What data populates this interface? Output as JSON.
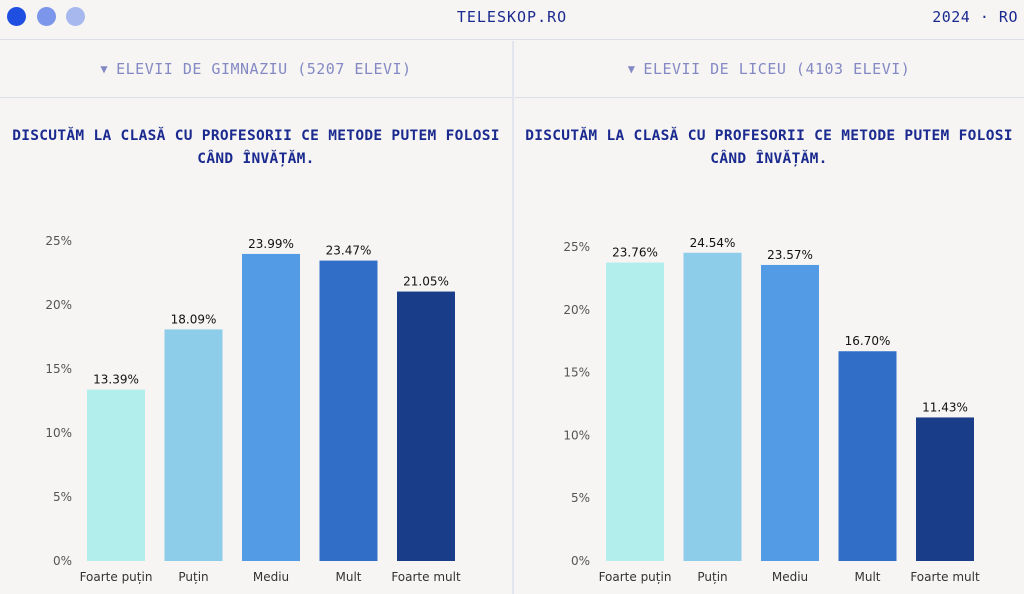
{
  "header": {
    "brand": "TELESKOP.RO",
    "meta": "2024 · RO",
    "window_dots": [
      "#1f4fe0",
      "#7b96ea",
      "#a7b8ef"
    ]
  },
  "panels": [
    {
      "dropdown_label": "ELEVII DE GIMNAZIU (5207 ELEVI)",
      "question": "DISCUTĂM LA CLASĂ CU PROFESORII CE METODE PUTEM FOLOSI CÂND ÎNVĂȚĂM."
    },
    {
      "dropdown_label": "ELEVII DE LICEU (4103 ELEVI)",
      "question": "DISCUTĂM LA CLASĂ CU PROFESORII CE METODE PUTEM FOLOSI CÂND ÎNVĂȚĂM."
    }
  ],
  "chart_data": [
    {
      "type": "bar",
      "categories": [
        "Foarte puțin",
        "Puțin",
        "Mediu",
        "Mult",
        "Foarte mult"
      ],
      "values": [
        13.39,
        18.09,
        23.99,
        23.47,
        21.05
      ],
      "value_labels": [
        "13.39%",
        "18.09%",
        "23.99%",
        "23.47%",
        "21.05%"
      ],
      "yticks": [
        "0%",
        "5%",
        "10%",
        "15%",
        "20%",
        "25%"
      ],
      "ylim": [
        0,
        25
      ],
      "grid": false,
      "colors": [
        "#b2efec",
        "#8dcde9",
        "#539be4",
        "#316ec7",
        "#1a3d8a"
      ]
    },
    {
      "type": "bar",
      "categories": [
        "Foarte puțin",
        "Puțin",
        "Mediu",
        "Mult",
        "Foarte mult"
      ],
      "values": [
        23.76,
        24.54,
        23.57,
        16.7,
        11.43
      ],
      "value_labels": [
        "23.76%",
        "24.54%",
        "23.57%",
        "16.70%",
        "11.43%"
      ],
      "yticks": [
        "0%",
        "5%",
        "10%",
        "15%",
        "20%",
        "25%"
      ],
      "ylim": [
        0,
        25
      ],
      "grid": false,
      "colors": [
        "#b2efec",
        "#8dcde9",
        "#539be4",
        "#316ec7",
        "#1a3d8a"
      ]
    }
  ]
}
